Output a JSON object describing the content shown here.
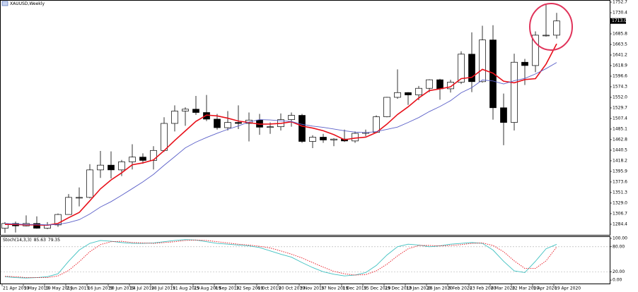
{
  "chart_data": [
    {
      "type": "candlestick",
      "title": "XAUUSD,Weekly",
      "categories": [
        "21 Apr 2019",
        null,
        "5 May 2019",
        null,
        "19 May 2019",
        null,
        "2 Jun 2019",
        null,
        "16 Jun 2019",
        null,
        "30 Jun 2019",
        null,
        "14 Jul 2019",
        null,
        "28 Jul 2019",
        null,
        "11 Aug 2019",
        null,
        "25 Aug 2019",
        null,
        "8 Sep 2019",
        null,
        "22 Sep 2019",
        null,
        "6 Oct 2019",
        null,
        "20 Oct 2019",
        null,
        "3 Nov 2019",
        null,
        "17 Nov 2019",
        null,
        "1 Dec 2019",
        null,
        "15 Dec 2019",
        null,
        "29 Dec 2019",
        null,
        "12 Jan 2020",
        null,
        "26 Jan 2020",
        null,
        "9 Feb 2020",
        null,
        "23 Feb 2020",
        null,
        "8 Mar 2020",
        null,
        "22 Mar 2020",
        null,
        "5 Apr 2020",
        null,
        "19 Apr 2020"
      ],
      "open": [
        1276,
        1286,
        1281,
        1286,
        1276,
        1283,
        1305,
        1341,
        1341,
        1399,
        1409,
        1399,
        1416,
        1426,
        1419,
        1440,
        1497,
        1523,
        1527,
        1520,
        1506,
        1488,
        1499,
        1497,
        1504,
        1489,
        1490,
        1505,
        1514,
        1459,
        1468,
        1462,
        1464,
        1460,
        1476,
        1478,
        1511,
        1552,
        1562,
        1557,
        1571,
        1589,
        1570,
        1584,
        1643,
        1585,
        1673,
        1530,
        1499,
        1626,
        1619,
        1683,
        1683
      ],
      "high": [
        1289,
        1290,
        1303,
        1301,
        1289,
        1307,
        1348,
        1362,
        1411,
        1439,
        1438,
        1420,
        1453,
        1434,
        1449,
        1510,
        1535,
        1531,
        1555,
        1557,
        1517,
        1523,
        1535,
        1520,
        1517,
        1499,
        1518,
        1520,
        1517,
        1472,
        1475,
        1466,
        1484,
        1480,
        1484,
        1514,
        1553,
        1611,
        1563,
        1576,
        1590,
        1591,
        1589,
        1649,
        1689,
        1703,
        1704,
        1560,
        1644,
        1633,
        1691,
        1747,
        1730
      ],
      "low": [
        1266,
        1267,
        1280,
        1275,
        1274,
        1279,
        1305,
        1322,
        1339,
        1382,
        1381,
        1386,
        1400,
        1412,
        1400,
        1437,
        1480,
        1492,
        1515,
        1502,
        1484,
        1482,
        1485,
        1459,
        1473,
        1475,
        1482,
        1490,
        1456,
        1445,
        1456,
        1449,
        1458,
        1456,
        1470,
        1477,
        1510,
        1549,
        1536,
        1546,
        1563,
        1547,
        1562,
        1580,
        1563,
        1583,
        1505,
        1451,
        1482,
        1578,
        1605,
        1680,
        1676
      ],
      "close": [
        1286,
        1281,
        1286,
        1276,
        1283,
        1305,
        1341,
        1341,
        1399,
        1409,
        1399,
        1416,
        1426,
        1419,
        1440,
        1497,
        1523,
        1527,
        1520,
        1506,
        1488,
        1499,
        1497,
        1504,
        1489,
        1490,
        1505,
        1514,
        1459,
        1468,
        1462,
        1464,
        1460,
        1476,
        1478,
        1511,
        1552,
        1562,
        1557,
        1571,
        1589,
        1570,
        1584,
        1643,
        1585,
        1673,
        1530,
        1499,
        1626,
        1619,
        1683,
        1683,
        1713
      ],
      "up_color": "#ffffff",
      "down_color": "#000000",
      "series": [
        {
          "color": "#e8101a",
          "values": [
            1284,
            1284,
            1283,
            1283,
            1282.4,
            1286.2,
            1298.2,
            1309.2,
            1333.8,
            1359,
            1377.8,
            1392.8,
            1409.8,
            1413.8,
            1420,
            1439.6,
            1461,
            1481.2,
            1501.4,
            1514.6,
            1512.8,
            1508,
            1502,
            1498.8,
            1495.4,
            1495.8,
            1497,
            1500.4,
            1491.4,
            1487.2,
            1481.6,
            1473.4,
            1462.6,
            1466,
            1468,
            1477.8,
            1495.4,
            1515.8,
            1532,
            1550.6,
            1566.2,
            1569.8,
            1574.2,
            1591.4,
            1594.2,
            1611,
            1603,
            1586,
            1582.6,
            1589.4,
            1591.4,
            1622,
            1664.8
          ]
        },
        {
          "color": "#5a5fc8",
          "values": [
            1286,
            1285,
            1284,
            1284,
            1283,
            1284,
            1288,
            1294,
            1306,
            1320.7,
            1332,
            1345.5,
            1359.5,
            1373.8,
            1389.5,
            1408.7,
            1426.9,
            1445.5,
            1457.6,
            1467.3,
            1476.2,
            1484.5,
            1491.6,
            1500.1,
            1505,
            1504.3,
            1502.5,
            1501.2,
            1495.1,
            1491.3,
            1488.7,
            1485.2,
            1481.5,
            1478.7,
            1477.6,
            1479.7,
            1484.4,
            1489.2,
            1499,
            1509.3,
            1522,
            1532.6,
            1545,
            1561.7,
            1572.4,
            1588.6,
            1586.4,
            1580.1,
            1587,
            1591.8,
            1601.2,
            1612.5,
            1625.4
          ]
        }
      ],
      "ylim": [
        1262.0,
        1757.2
      ],
      "yticks": [
        1752.7,
        1730.4,
        1685.8,
        1663.5,
        1641.2,
        1618.9,
        1596.6,
        1574.3,
        {
          "value": 1552.0,
          "label": "1552.0"
        },
        1529.7,
        1507.4,
        1485.1,
        1462.8,
        1440.5,
        1418.2,
        1395.9,
        1373.6,
        1351.3,
        {
          "value": 1329.0,
          "label": "1329.0"
        },
        1306.7,
        1284.4
      ],
      "last_price": {
        "value": 1713.0,
        "label": "1713.0"
      }
    },
    {
      "type": "line",
      "title": "Stoch(14,3,3)",
      "series": [
        {
          "color": "#3fc1c1",
          "values": [
            8,
            6,
            5,
            6,
            8,
            15,
            45,
            72,
            88,
            95,
            93,
            90,
            88,
            88,
            89,
            92,
            95,
            97,
            96,
            92,
            88,
            86,
            84,
            82,
            78,
            70,
            62,
            55,
            42,
            30,
            20,
            14,
            10,
            12,
            18,
            35,
            60,
            80,
            86,
            84,
            80,
            82,
            86,
            88,
            90,
            88,
            72,
            45,
            22,
            18,
            45,
            75,
            85.63
          ]
        },
        {
          "color": "#e8101a",
          "dash": true,
          "values": [
            9,
            8,
            6,
            6,
            6,
            10,
            23,
            44,
            68,
            85,
            92,
            93,
            90,
            89,
            88,
            90,
            92,
            95,
            96,
            95,
            92,
            89,
            86,
            84,
            81,
            77,
            70,
            62,
            53,
            42,
            31,
            21,
            15,
            12,
            13,
            22,
            38,
            58,
            75,
            83,
            83,
            82,
            83,
            85,
            88,
            89,
            83,
            68,
            46,
            28,
            28,
            46,
            79.35
          ]
        }
      ],
      "ylim": [
        -10,
        105
      ],
      "yticks": [
        {
          "value": 100,
          "label": "100.00"
        },
        {
          "value": 80,
          "label": "80.00"
        },
        {
          "value": 20,
          "label": "20.00"
        },
        {
          "value": 0,
          "label": "0.00"
        }
      ],
      "levels": [
        80,
        20
      ]
    }
  ]
}
